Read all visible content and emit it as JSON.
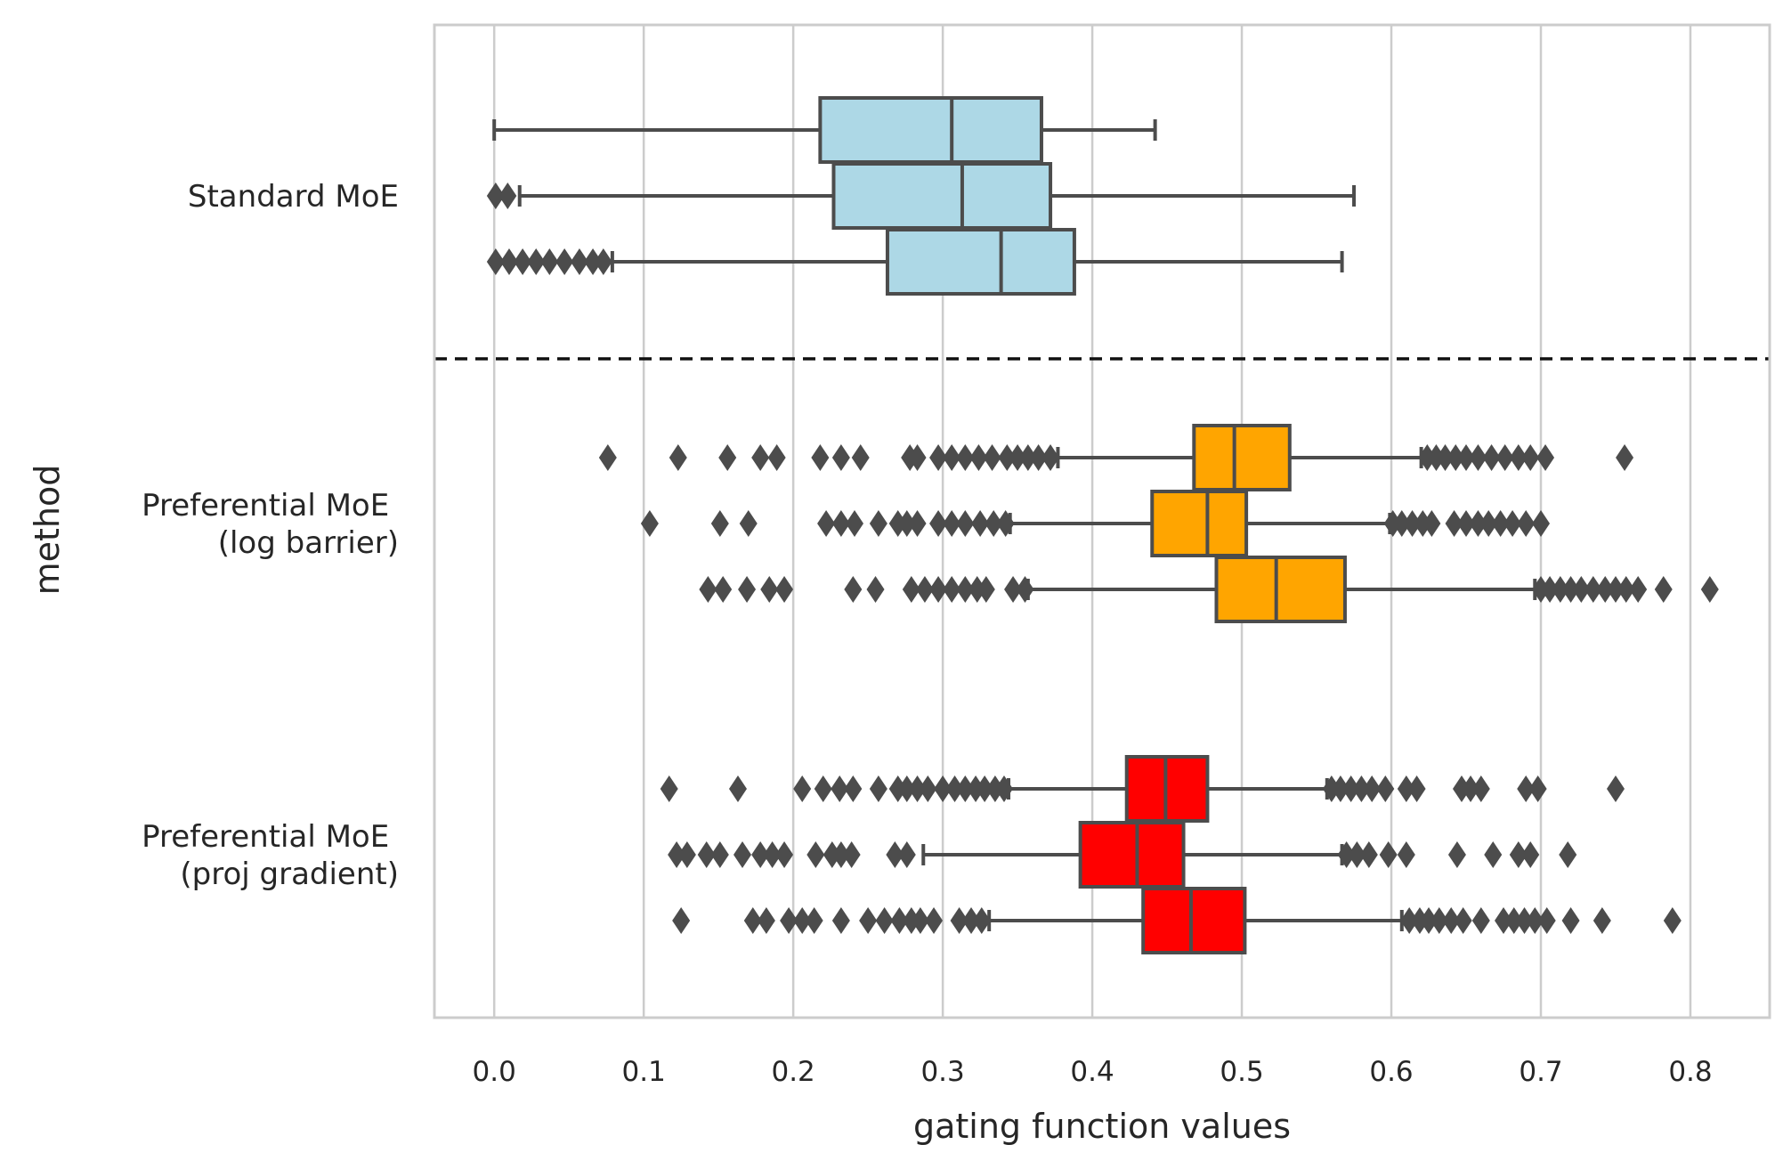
{
  "chart_data": {
    "type": "boxplot",
    "orientation": "horizontal",
    "xlabel": "gating function values",
    "ylabel": "method",
    "xlim": [
      -0.04,
      0.853
    ],
    "xticks": [
      0.0,
      0.1,
      0.2,
      0.3,
      0.4,
      0.5,
      0.6,
      0.7,
      0.8
    ],
    "xtick_labels": [
      "0.0",
      "0.1",
      "0.2",
      "0.3",
      "0.4",
      "0.5",
      "0.6",
      "0.7",
      "0.8"
    ],
    "grid": "vertical",
    "separator": "dashed line between Standard MoE and Preferential MoE groups",
    "groups": [
      {
        "name": "Standard MoE",
        "label_lines": [
          "Standard MoE"
        ],
        "color": "#add8e6",
        "boxes": [
          {
            "whislo": 0.0,
            "q1": 0.218,
            "med": 0.306,
            "q3": 0.366,
            "whishi": 0.442,
            "fliers": []
          },
          {
            "whislo": 0.017,
            "q1": 0.227,
            "med": 0.313,
            "q3": 0.372,
            "whishi": 0.575,
            "fliers": [
              0.001,
              0.009
            ]
          },
          {
            "whislo": 0.079,
            "q1": 0.263,
            "med": 0.339,
            "q3": 0.388,
            "whishi": 0.567,
            "fliers": [
              0.001,
              0.01,
              0.019,
              0.028,
              0.037,
              0.047,
              0.057,
              0.066,
              0.073
            ]
          }
        ]
      },
      {
        "name": "Preferential MoE (log barrier)",
        "label_lines": [
          "Preferential MoE ",
          "(log barrier)"
        ],
        "color": "#ffa500",
        "boxes": [
          {
            "whislo": 0.377,
            "q1": 0.468,
            "med": 0.495,
            "q3": 0.532,
            "whishi": 0.62,
            "fliers": [
              0.076,
              0.123,
              0.156,
              0.178,
              0.189,
              0.218,
              0.232,
              0.245,
              0.278,
              0.283,
              0.297,
              0.306,
              0.315,
              0.324,
              0.333,
              0.343,
              0.35,
              0.357,
              0.364,
              0.372,
              0.624,
              0.63,
              0.636,
              0.643,
              0.65,
              0.658,
              0.667,
              0.676,
              0.685,
              0.693,
              0.703,
              0.756
            ]
          },
          {
            "whislo": 0.345,
            "q1": 0.44,
            "med": 0.477,
            "q3": 0.503,
            "whishi": 0.599,
            "fliers": [
              0.104,
              0.151,
              0.17,
              0.222,
              0.232,
              0.241,
              0.257,
              0.27,
              0.276,
              0.283,
              0.297,
              0.306,
              0.315,
              0.325,
              0.334,
              0.342,
              0.601,
              0.607,
              0.614,
              0.621,
              0.627,
              0.642,
              0.65,
              0.658,
              0.665,
              0.673,
              0.681,
              0.69,
              0.7
            ]
          },
          {
            "whislo": 0.357,
            "q1": 0.483,
            "med": 0.523,
            "q3": 0.569,
            "whishi": 0.696,
            "fliers": [
              0.143,
              0.153,
              0.169,
              0.184,
              0.194,
              0.24,
              0.255,
              0.279,
              0.288,
              0.297,
              0.306,
              0.315,
              0.323,
              0.329,
              0.347,
              0.355,
              0.7,
              0.706,
              0.713,
              0.72,
              0.727,
              0.735,
              0.743,
              0.75,
              0.757,
              0.765,
              0.782,
              0.813
            ]
          }
        ]
      },
      {
        "name": "Preferential MoE (proj gradient)",
        "label_lines": [
          "Preferential MoE ",
          "(proj gradient)"
        ],
        "color": "#ff0000",
        "boxes": [
          {
            "whislo": 0.344,
            "q1": 0.423,
            "med": 0.449,
            "q3": 0.477,
            "whishi": 0.557,
            "fliers": [
              0.117,
              0.163,
              0.206,
              0.22,
              0.231,
              0.24,
              0.257,
              0.27,
              0.276,
              0.283,
              0.29,
              0.3,
              0.308,
              0.315,
              0.322,
              0.328,
              0.335,
              0.341,
              0.56,
              0.566,
              0.573,
              0.58,
              0.587,
              0.596,
              0.61,
              0.617,
              0.647,
              0.653,
              0.66,
              0.69,
              0.698,
              0.75
            ]
          },
          {
            "whislo": 0.287,
            "q1": 0.392,
            "med": 0.43,
            "q3": 0.461,
            "whishi": 0.567,
            "fliers": [
              0.122,
              0.129,
              0.142,
              0.151,
              0.166,
              0.178,
              0.186,
              0.194,
              0.215,
              0.226,
              0.232,
              0.239,
              0.268,
              0.276,
              0.57,
              0.577,
              0.585,
              0.598,
              0.61,
              0.644,
              0.668,
              0.685,
              0.693,
              0.718
            ]
          },
          {
            "whislo": 0.331,
            "q1": 0.434,
            "med": 0.466,
            "q3": 0.502,
            "whishi": 0.607,
            "fliers": [
              0.125,
              0.173,
              0.182,
              0.197,
              0.206,
              0.214,
              0.232,
              0.25,
              0.261,
              0.271,
              0.279,
              0.285,
              0.294,
              0.311,
              0.319,
              0.326,
              0.612,
              0.619,
              0.625,
              0.632,
              0.64,
              0.648,
              0.66,
              0.675,
              0.682,
              0.689,
              0.696,
              0.704,
              0.72,
              0.741,
              0.788
            ]
          }
        ]
      }
    ]
  }
}
